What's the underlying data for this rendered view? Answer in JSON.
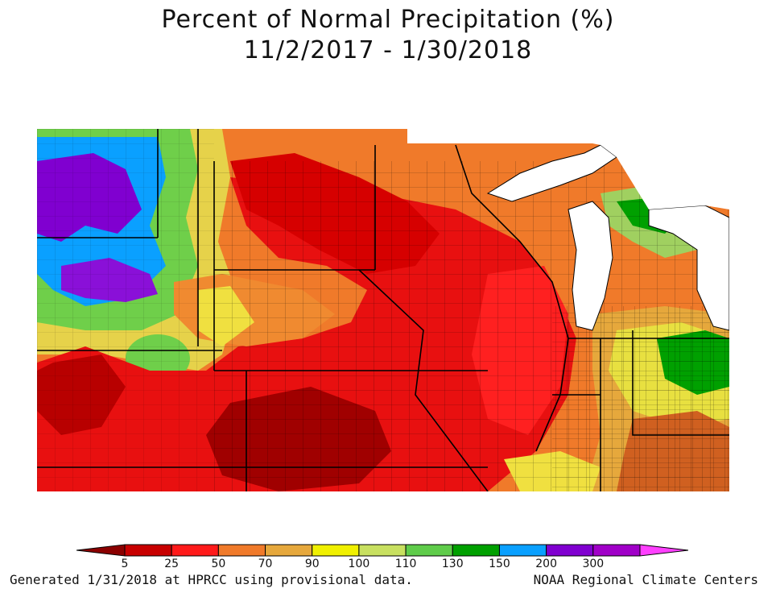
{
  "title": {
    "line1": "Percent of Normal Precipitation (%)",
    "line2": "11/2/2017 - 1/30/2018"
  },
  "legend": {
    "ticks": [
      "5",
      "25",
      "50",
      "70",
      "90",
      "100",
      "110",
      "130",
      "150",
      "200",
      "300"
    ],
    "colors": [
      "#8b0000",
      "#c80000",
      "#ff1a1a",
      "#f07a2a",
      "#e6a83c",
      "#f0f000",
      "#c8e060",
      "#5fcc4a",
      "#00a000",
      "#0aa0ff",
      "#8000d0",
      "#a000c8",
      "#ff40ff"
    ]
  },
  "footer": {
    "generated": "Generated 1/31/2018 at HPRCC using provisional data.",
    "credit": "NOAA Regional Climate Centers"
  },
  "map_colors": {
    "deep_red": "#8b0000",
    "red": "#e00000",
    "orange": "#f07a2a",
    "light_orange": "#e6a83c",
    "yellow": "#f0f000",
    "light_green": "#a0e060",
    "green": "#00a000",
    "blue": "#0aa0ff",
    "purple": "#8000d0",
    "lake": "#ffffff",
    "border": "#000000"
  }
}
